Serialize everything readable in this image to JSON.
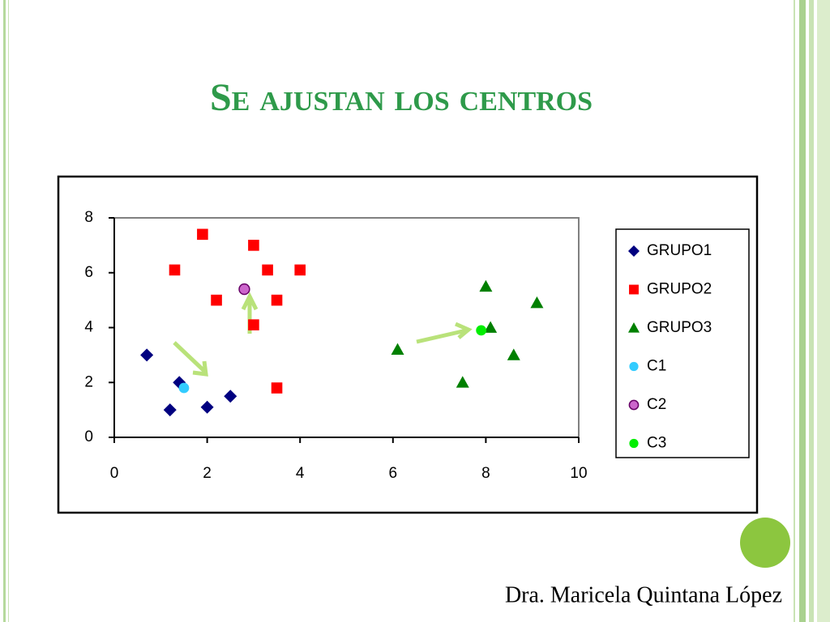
{
  "slide": {
    "title": "Se ajustan los centros",
    "footer": "Dra. Maricela Quintana López"
  },
  "chart_data": {
    "type": "scatter",
    "xlim": [
      0,
      10
    ],
    "ylim": [
      0,
      8
    ],
    "xticks": [
      0,
      2,
      4,
      6,
      8,
      10
    ],
    "yticks": [
      0,
      2,
      4,
      6,
      8
    ],
    "series": [
      {
        "name": "GRUPO1",
        "color": "#000080",
        "marker": "diamond",
        "x": [
          0.7,
          1.4,
          1.2,
          2,
          2.5
        ],
        "y": [
          3,
          2,
          1,
          1.1,
          1.5
        ]
      },
      {
        "name": "GRUPO2",
        "color": "#ff0000",
        "marker": "square",
        "x": [
          1.3,
          1.9,
          3,
          3.3,
          4,
          2.2,
          3.5,
          3,
          3.5
        ],
        "y": [
          6.1,
          7.4,
          7,
          6.1,
          6.1,
          5,
          5,
          4.1,
          1.8
        ]
      },
      {
        "name": "GRUPO3",
        "color": "#008000",
        "marker": "triangle",
        "x": [
          6.1,
          8,
          8.1,
          9.1,
          8.6,
          7.5
        ],
        "y": [
          3.2,
          5.5,
          4,
          4.9,
          3,
          2
        ]
      },
      {
        "name": "C1",
        "color": "#33ccff",
        "marker": "circle",
        "x": [
          1.5
        ],
        "y": [
          1.8
        ]
      },
      {
        "name": "C2",
        "color": "#cc66cc",
        "marker": "circle",
        "x": [
          2.8
        ],
        "y": [
          5.4
        ]
      },
      {
        "name": "C3",
        "color": "#00ee00",
        "marker": "circle",
        "x": [
          7.9
        ],
        "y": [
          3.9
        ]
      }
    ]
  }
}
